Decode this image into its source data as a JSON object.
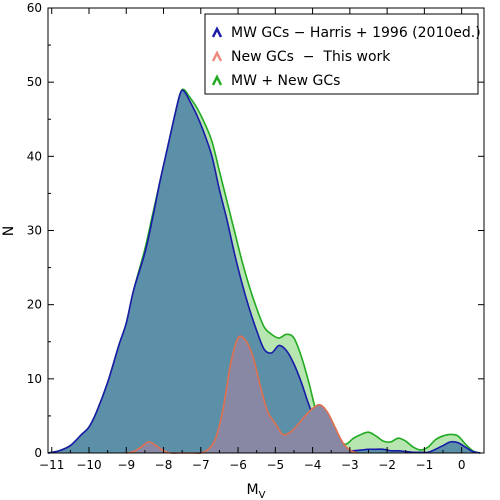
{
  "chart_data": {
    "type": "area",
    "xlabel": "M",
    "xlabel_sub": "V",
    "ylabel": "N",
    "xlim": [
      -11.1,
      0.6
    ],
    "ylim": [
      0,
      60
    ],
    "x_ticks": [
      -11,
      -10,
      -9,
      -8,
      -7,
      -6,
      -5,
      -4,
      -3,
      -2,
      -1,
      0
    ],
    "x_tick_labels": [
      "−11",
      "−10",
      "−9",
      "−8",
      "−7",
      "−6",
      "−5",
      "−4",
      "−3",
      "−2",
      "−1",
      "0"
    ],
    "y_ticks": [
      0,
      10,
      20,
      30,
      40,
      50,
      60
    ],
    "y_tick_labels": [
      "0",
      "10",
      "20",
      "30",
      "40",
      "50",
      "60"
    ],
    "legend_position": "top-right",
    "series": [
      {
        "name": "MW + New GCs",
        "color": "#22aa22",
        "fill": "#b8e6b0",
        "x": [
          -11.1,
          -10.8,
          -10.5,
          -10.2,
          -10.0,
          -9.8,
          -9.5,
          -9.2,
          -9.0,
          -8.8,
          -8.5,
          -8.3,
          -8.1,
          -7.9,
          -7.7,
          -7.55,
          -7.45,
          -7.3,
          -7.1,
          -6.9,
          -6.7,
          -6.5,
          -6.3,
          -6.1,
          -5.9,
          -5.7,
          -5.5,
          -5.3,
          -5.1,
          -4.9,
          -4.7,
          -4.5,
          -4.3,
          -4.1,
          -3.9,
          -3.7,
          -3.5,
          -3.3,
          -3.1,
          -2.9,
          -2.7,
          -2.5,
          -2.3,
          -2.1,
          -1.9,
          -1.7,
          -1.5,
          -1.3,
          -1.1,
          -0.9,
          -0.7,
          -0.5,
          -0.3,
          -0.1,
          0.1,
          0.3,
          0.5
        ],
        "values": [
          0,
          0.3,
          1.0,
          2.5,
          3.5,
          5.5,
          9.5,
          14.5,
          17.5,
          22.0,
          27.5,
          32.0,
          36.5,
          41.0,
          45.5,
          48.5,
          49.0,
          48.0,
          46.5,
          44.5,
          42.0,
          38.0,
          34.0,
          30.0,
          26.0,
          22.5,
          19.5,
          17.0,
          16.0,
          15.5,
          16.0,
          15.5,
          13.0,
          9.5,
          5.5,
          3.0,
          2.0,
          1.5,
          1.2,
          2.0,
          2.5,
          2.8,
          2.3,
          1.6,
          1.5,
          2.0,
          1.6,
          0.8,
          0.4,
          0.8,
          1.8,
          2.3,
          2.5,
          2.3,
          1.2,
          0.3,
          0
        ]
      },
      {
        "name": "MW GCs − Harris + 1996 (2010ed.)",
        "color": "#1a1aa8",
        "fill": "#5b90a8",
        "x": [
          -11.1,
          -10.8,
          -10.5,
          -10.2,
          -10.0,
          -9.8,
          -9.5,
          -9.2,
          -9.0,
          -8.8,
          -8.5,
          -8.3,
          -8.1,
          -7.9,
          -7.7,
          -7.55,
          -7.45,
          -7.3,
          -7.1,
          -6.9,
          -6.7,
          -6.5,
          -6.3,
          -6.1,
          -5.9,
          -5.7,
          -5.5,
          -5.3,
          -5.1,
          -4.9,
          -4.7,
          -4.5,
          -4.3,
          -4.1,
          -3.9,
          -3.7,
          -3.5,
          -3.3,
          -3.1,
          -2.9,
          -2.7,
          -2.5,
          -2.3,
          -2.1,
          -1.9,
          -1.7,
          -1.5,
          -1.3,
          -1.1,
          -0.9,
          -0.7,
          -0.5,
          -0.3,
          -0.1,
          0.1,
          0.3,
          0.5
        ],
        "values": [
          0,
          0.3,
          1.0,
          2.5,
          3.5,
          5.5,
          9.5,
          14.5,
          17.5,
          22.0,
          27.0,
          31.5,
          36.5,
          41.0,
          45.5,
          48.5,
          48.8,
          47.5,
          45.5,
          43.0,
          40.0,
          35.5,
          31.5,
          27.0,
          23.0,
          19.5,
          16.5,
          14.0,
          13.5,
          14.5,
          13.8,
          12.0,
          9.5,
          6.5,
          4.0,
          2.5,
          1.2,
          0.6,
          0.3,
          0.3,
          0.4,
          0.5,
          0.5,
          0.5,
          0.3,
          0.3,
          0.2,
          0.1,
          0.1,
          0.1,
          0.5,
          1.0,
          1.5,
          1.4,
          0.8,
          0.2,
          0
        ]
      },
      {
        "name": "New GCs  −  This work",
        "color": "#e07050",
        "fill": "#8888a4",
        "x": [
          -9.0,
          -8.8,
          -8.6,
          -8.4,
          -8.2,
          -8.0,
          -7.8,
          -7.6,
          -7.4,
          -7.2,
          -7.0,
          -6.8,
          -6.6,
          -6.4,
          -6.2,
          -6.0,
          -5.8,
          -5.6,
          -5.4,
          -5.2,
          -5.0,
          -4.8,
          -4.6,
          -4.4,
          -4.2,
          -4.0,
          -3.8,
          -3.6,
          -3.4,
          -3.2,
          -3.0,
          -2.8
        ],
        "values": [
          0,
          0.2,
          0.8,
          1.5,
          1.0,
          0.3,
          0,
          0,
          0,
          0,
          0,
          0.5,
          2.0,
          6.0,
          12.0,
          15.5,
          15.2,
          13.0,
          9.0,
          5.5,
          4.0,
          2.5,
          2.8,
          3.8,
          5.0,
          6.0,
          6.5,
          5.5,
          3.5,
          1.5,
          0.4,
          0
        ]
      }
    ]
  }
}
